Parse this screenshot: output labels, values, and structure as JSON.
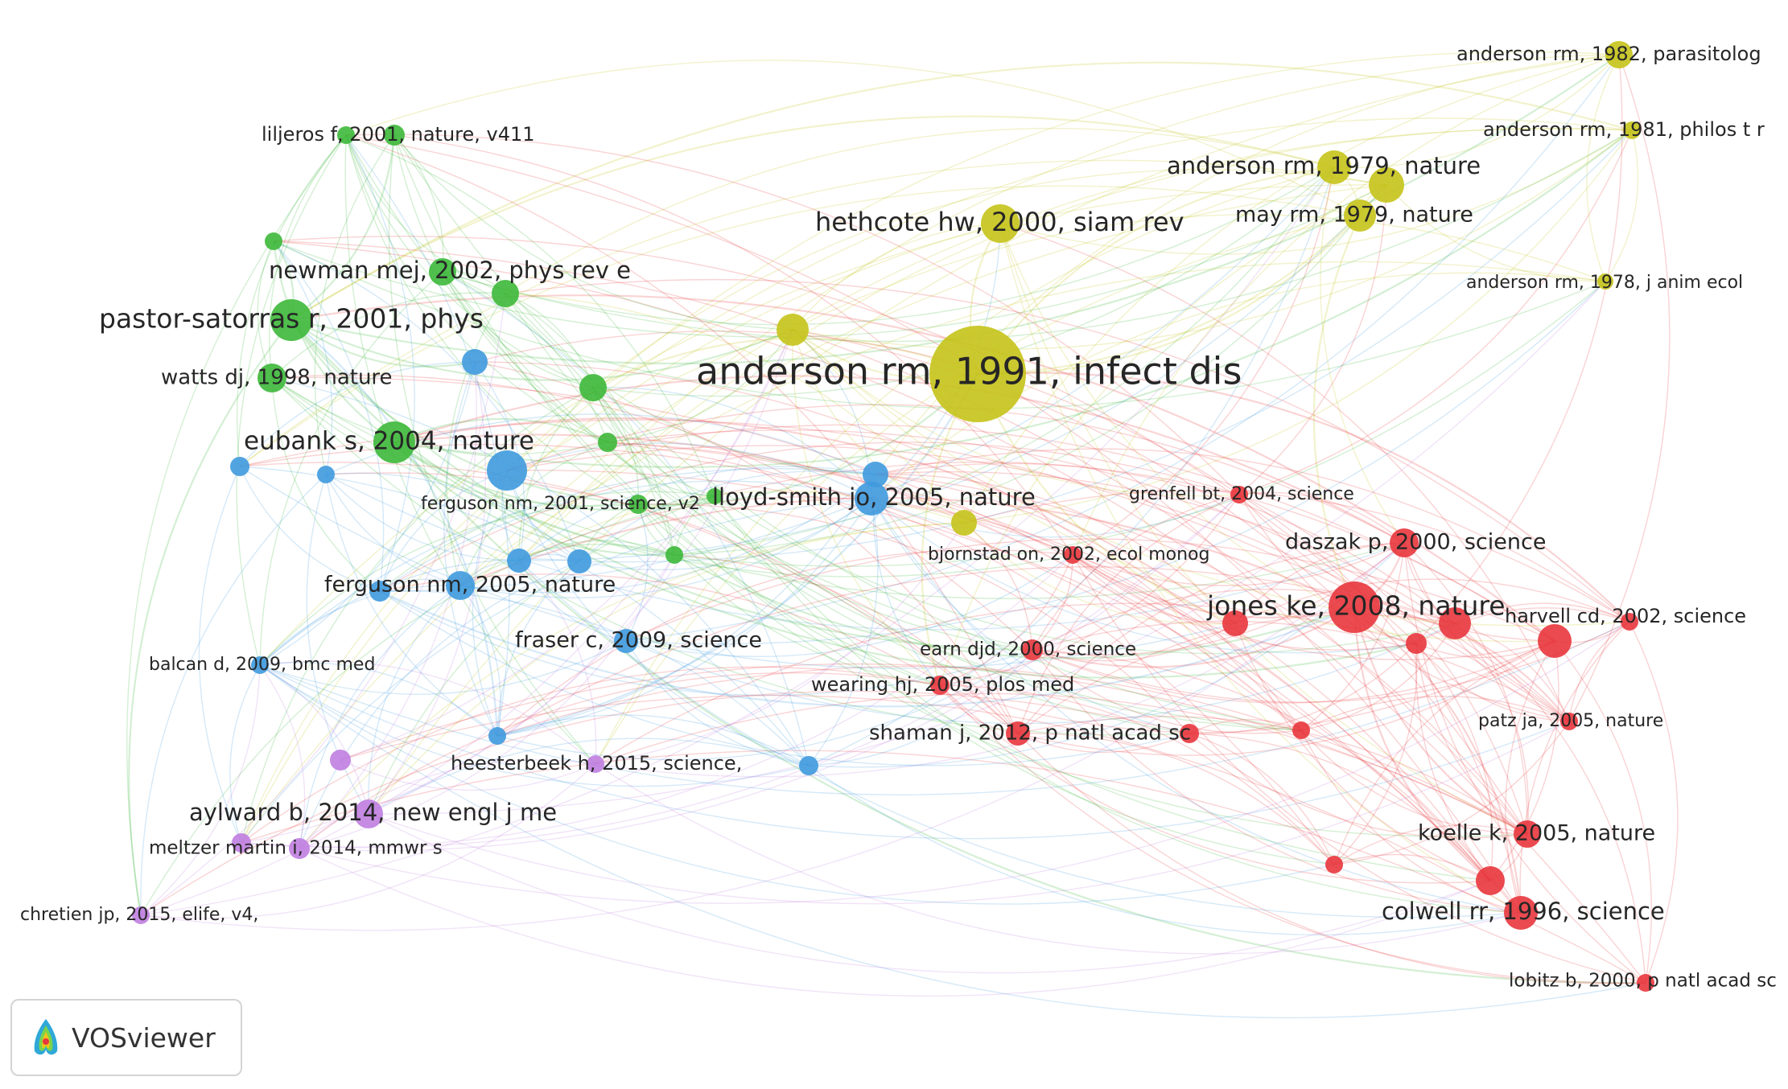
{
  "colors": {
    "red": "#e8363d",
    "green": "#3db83a",
    "blue": "#3f9ade",
    "yellow": "#c5c31a",
    "purple": "#c07ee0"
  },
  "badge": {
    "label": "VOSviewer",
    "icon": "vosviewer-logo-icon"
  },
  "network": {
    "nodes": [
      {
        "id": "anderson1991",
        "label": "anderson rm, 1991, infect dis",
        "cluster": "yellow",
        "size": 60
      },
      {
        "id": "hethcote2000",
        "label": "hethcote hw, 2000, siam rev",
        "cluster": "yellow",
        "size": 24
      },
      {
        "id": "anderson1979",
        "label": "anderson rm, 1979, nature",
        "cluster": "yellow",
        "size": 21
      },
      {
        "id": "may1979",
        "label": "may rm, 1979, nature",
        "cluster": "yellow",
        "size": 20
      },
      {
        "id": "anderson1982",
        "label": "anderson rm, 1982, parasitolog",
        "cluster": "yellow",
        "size": 17
      },
      {
        "id": "anderson1981",
        "label": "anderson rm, 1981, philos t r",
        "cluster": "yellow",
        "size": 11
      },
      {
        "id": "anderson1978",
        "label": "anderson rm, 1978, j anim ecol",
        "cluster": "yellow",
        "size": 10
      },
      {
        "id": "pastor2001",
        "label": "pastor-satorras r, 2001, phys",
        "cluster": "green",
        "size": 26
      },
      {
        "id": "newman2002",
        "label": "newman mej, 2002, phys rev e",
        "cluster": "green",
        "size": 17
      },
      {
        "id": "liljeros2001",
        "label": "liljeros f, 2001, nature, v411",
        "cluster": "green",
        "size": 11
      },
      {
        "id": "watts1998",
        "label": "watts dj, 1998, nature",
        "cluster": "green",
        "size": 18
      },
      {
        "id": "eubank2004",
        "label": "eubank s, 2004, nature",
        "cluster": "green",
        "size": 26
      },
      {
        "id": "ferguson2001",
        "label": "ferguson nm, 2001, science, v2",
        "cluster": "green",
        "size": 12
      },
      {
        "id": "lloyd2005",
        "label": "lloyd-smith jo, 2005, nature",
        "cluster": "blue",
        "size": 21
      },
      {
        "id": "ferguson2005",
        "label": "ferguson nm, 2005, nature",
        "cluster": "blue",
        "size": 18
      },
      {
        "id": "fraser2009",
        "label": "fraser c, 2009, science",
        "cluster": "blue",
        "size": 15
      },
      {
        "id": "balcan2009",
        "label": "balcan d, 2009, bmc med",
        "cluster": "blue",
        "size": 11
      },
      {
        "id": "heesterbeek2015",
        "label": "heesterbeek h, 2015, science,",
        "cluster": "purple",
        "size": 11
      },
      {
        "id": "aylward2014",
        "label": "aylward b, 2014, new engl j me",
        "cluster": "purple",
        "size": 18
      },
      {
        "id": "meltzer2014",
        "label": "meltzer martin i, 2014, mmwr s",
        "cluster": "purple",
        "size": 12
      },
      {
        "id": "chretien2015",
        "label": "chretien jp, 2015, elife, v4,",
        "cluster": "purple",
        "size": 11
      },
      {
        "id": "jones2008",
        "label": "jones ke, 2008, nature",
        "cluster": "red",
        "size": 32
      },
      {
        "id": "daszak2000",
        "label": "daszak p, 2000, science",
        "cluster": "red",
        "size": 18
      },
      {
        "id": "grenfell2004",
        "label": "grenfell bt, 2004, science",
        "cluster": "red",
        "size": 11
      },
      {
        "id": "bjornstad2002",
        "label": "bjornstad on, 2002, ecol monog",
        "cluster": "red",
        "size": 11
      },
      {
        "id": "harvell2002",
        "label": "harvell cd, 2002, science",
        "cluster": "red",
        "size": 21
      },
      {
        "id": "earn2000",
        "label": "earn djd, 2000, science",
        "cluster": "red",
        "size": 13
      },
      {
        "id": "wearing2005",
        "label": "wearing hj, 2005, plos med",
        "cluster": "red",
        "size": 12
      },
      {
        "id": "shaman2012",
        "label": "shaman j, 2012, p natl acad sc",
        "cluster": "red",
        "size": 15
      },
      {
        "id": "patz2005",
        "label": "patz ja, 2005, nature",
        "cluster": "red",
        "size": 11
      },
      {
        "id": "koelle2005",
        "label": "koelle k, 2005, nature",
        "cluster": "red",
        "size": 17
      },
      {
        "id": "colwell1996",
        "label": "colwell rr, 1996, science",
        "cluster": "red",
        "size": 21
      },
      {
        "id": "lobitz2000",
        "label": "lobitz b, 2000, p natl acad sc",
        "cluster": "red",
        "size": 11
      },
      {
        "id": "u_y1",
        "label": "",
        "cluster": "yellow",
        "size": 20
      },
      {
        "id": "u_y2",
        "label": "",
        "cluster": "yellow",
        "size": 22
      },
      {
        "id": "u_y3",
        "label": "",
        "cluster": "yellow",
        "size": 16
      },
      {
        "id": "u_g1",
        "label": "",
        "cluster": "green",
        "size": 11
      },
      {
        "id": "u_g2",
        "label": "",
        "cluster": "green",
        "size": 13
      },
      {
        "id": "u_g3",
        "label": "",
        "cluster": "green",
        "size": 17
      },
      {
        "id": "u_g4",
        "label": "",
        "cluster": "green",
        "size": 17
      },
      {
        "id": "u_g5",
        "label": "",
        "cluster": "green",
        "size": 12
      },
      {
        "id": "u_g6",
        "label": "",
        "cluster": "green",
        "size": 11
      },
      {
        "id": "u_g7",
        "label": "",
        "cluster": "green",
        "size": 10
      },
      {
        "id": "u_b1",
        "label": "",
        "cluster": "blue",
        "size": 16
      },
      {
        "id": "u_b2",
        "label": "",
        "cluster": "blue",
        "size": 25
      },
      {
        "id": "u_b3",
        "label": "",
        "cluster": "blue",
        "size": 13
      },
      {
        "id": "u_b4",
        "label": "",
        "cluster": "blue",
        "size": 11
      },
      {
        "id": "u_b5",
        "label": "",
        "cluster": "blue",
        "size": 15
      },
      {
        "id": "u_b6",
        "label": "",
        "cluster": "blue",
        "size": 15
      },
      {
        "id": "u_b7",
        "label": "",
        "cluster": "blue",
        "size": 16
      },
      {
        "id": "u_b8",
        "label": "",
        "cluster": "blue",
        "size": 11
      },
      {
        "id": "u_b9",
        "label": "",
        "cluster": "blue",
        "size": 12
      },
      {
        "id": "u_b10",
        "label": "",
        "cluster": "blue",
        "size": 12
      },
      {
        "id": "u_p1",
        "label": "",
        "cluster": "purple",
        "size": 13
      },
      {
        "id": "u_p2",
        "label": "",
        "cluster": "purple",
        "size": 13
      },
      {
        "id": "u_r1",
        "label": "",
        "cluster": "red",
        "size": 16
      },
      {
        "id": "u_r2",
        "label": "",
        "cluster": "red",
        "size": 20
      },
      {
        "id": "u_r3",
        "label": "",
        "cluster": "red",
        "size": 13
      },
      {
        "id": "u_r4",
        "label": "",
        "cluster": "red",
        "size": 12
      },
      {
        "id": "u_r5",
        "label": "",
        "cluster": "red",
        "size": 11
      },
      {
        "id": "u_r6",
        "label": "",
        "cluster": "red",
        "size": 18
      },
      {
        "id": "u_r7",
        "label": "",
        "cluster": "red",
        "size": 11
      },
      {
        "id": "u_r8",
        "label": "",
        "cluster": "red",
        "size": 11
      }
    ]
  }
}
